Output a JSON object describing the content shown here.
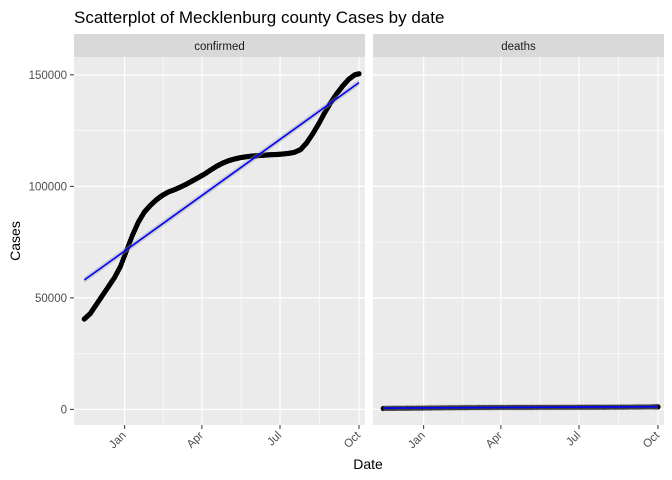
{
  "chart_data": {
    "type": "scatter",
    "title": "Scatterplot of  Mecklenburg county Cases by date",
    "xlabel": "Date",
    "ylabel": "Cases",
    "x_ticks": [
      "Jan",
      "Apr",
      "Jul",
      "Oct"
    ],
    "x_tick_dates": [
      "2021-01-01",
      "2021-04-01",
      "2021-07-01",
      "2021-10-01"
    ],
    "x_range": [
      "2020-11-03",
      "2021-10-08"
    ],
    "y_ticks": [
      0,
      50000,
      100000,
      150000
    ],
    "ylim": [
      -7000,
      158000
    ],
    "grid": true,
    "facets": [
      {
        "label": "confirmed",
        "points": [
          [
            "2020-11-15",
            40500
          ],
          [
            "2020-11-22",
            43000
          ],
          [
            "2020-11-29",
            47000
          ],
          [
            "2020-12-06",
            51000
          ],
          [
            "2020-12-13",
            55000
          ],
          [
            "2020-12-20",
            59000
          ],
          [
            "2020-12-27",
            64000
          ],
          [
            "2021-01-03",
            71000
          ],
          [
            "2021-01-10",
            78000
          ],
          [
            "2021-01-17",
            84000
          ],
          [
            "2021-01-24",
            88500
          ],
          [
            "2021-01-31",
            91500
          ],
          [
            "2021-02-07",
            94000
          ],
          [
            "2021-02-14",
            96000
          ],
          [
            "2021-02-21",
            97500
          ],
          [
            "2021-02-28",
            98500
          ],
          [
            "2021-03-07",
            99700
          ],
          [
            "2021-03-14",
            101000
          ],
          [
            "2021-03-21",
            102500
          ],
          [
            "2021-03-28",
            104000
          ],
          [
            "2021-04-04",
            105500
          ],
          [
            "2021-04-11",
            107300
          ],
          [
            "2021-04-18",
            109000
          ],
          [
            "2021-04-25",
            110400
          ],
          [
            "2021-05-02",
            111500
          ],
          [
            "2021-05-09",
            112300
          ],
          [
            "2021-05-16",
            112900
          ],
          [
            "2021-05-23",
            113300
          ],
          [
            "2021-05-30",
            113600
          ],
          [
            "2021-06-06",
            113800
          ],
          [
            "2021-06-13",
            114000
          ],
          [
            "2021-06-20",
            114200
          ],
          [
            "2021-06-27",
            114300
          ],
          [
            "2021-07-04",
            114500
          ],
          [
            "2021-07-11",
            114800
          ],
          [
            "2021-07-18",
            115300
          ],
          [
            "2021-07-25",
            116500
          ],
          [
            "2021-08-01",
            119500
          ],
          [
            "2021-08-08",
            123500
          ],
          [
            "2021-08-15",
            128000
          ],
          [
            "2021-08-22",
            133000
          ],
          [
            "2021-08-29",
            137500
          ],
          [
            "2021-09-05",
            141500
          ],
          [
            "2021-09-12",
            145000
          ],
          [
            "2021-09-19",
            148000
          ],
          [
            "2021-09-26",
            150000
          ],
          [
            "2021-10-01",
            150500
          ]
        ],
        "trend": [
          [
            "2020-11-15",
            58000
          ],
          [
            "2021-10-01",
            146500
          ]
        ]
      },
      {
        "label": "deaths",
        "points": [
          [
            "2020-11-15",
            400
          ],
          [
            "2020-12-06",
            480
          ],
          [
            "2020-12-27",
            560
          ],
          [
            "2021-01-17",
            660
          ],
          [
            "2021-02-07",
            760
          ],
          [
            "2021-02-28",
            820
          ],
          [
            "2021-03-21",
            860
          ],
          [
            "2021-04-11",
            890
          ],
          [
            "2021-05-02",
            910
          ],
          [
            "2021-05-23",
            925
          ],
          [
            "2021-06-13",
            935
          ],
          [
            "2021-07-04",
            945
          ],
          [
            "2021-07-25",
            955
          ],
          [
            "2021-08-15",
            990
          ],
          [
            "2021-09-05",
            1060
          ],
          [
            "2021-09-26",
            1120
          ],
          [
            "2021-10-01",
            1130
          ]
        ],
        "trend": [
          [
            "2020-11-15",
            600
          ],
          [
            "2021-10-01",
            1200
          ]
        ]
      }
    ],
    "colors": {
      "panel_bg": "#ebebeb",
      "strip_bg": "#d9d9d9",
      "grid": "#ffffff",
      "points": "#000000",
      "trend": "#0000ff",
      "ribbon": "#999999",
      "tick_text": "#4d4d4d"
    }
  }
}
